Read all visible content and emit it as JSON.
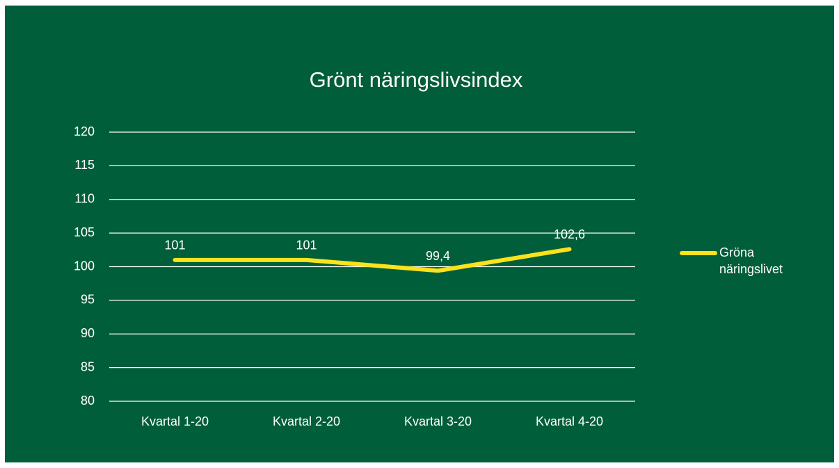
{
  "chart_data": {
    "type": "line",
    "title": "Grönt näringslivsindex",
    "categories": [
      "Kvartal 1-20",
      "Kvartal 2-20",
      "Kvartal 3-20",
      "Kvartal 4-20"
    ],
    "series": [
      {
        "name": "Gröna näringslivet",
        "color": "#fce21b",
        "values": [
          101,
          101,
          99.4,
          102.6
        ],
        "value_labels": [
          "101",
          "101",
          "99,4",
          "102,6"
        ]
      }
    ],
    "ylim": [
      80,
      120
    ],
    "yticks": [
      80,
      85,
      90,
      95,
      100,
      105,
      110,
      115,
      120
    ],
    "grid": true,
    "legend": "right"
  }
}
